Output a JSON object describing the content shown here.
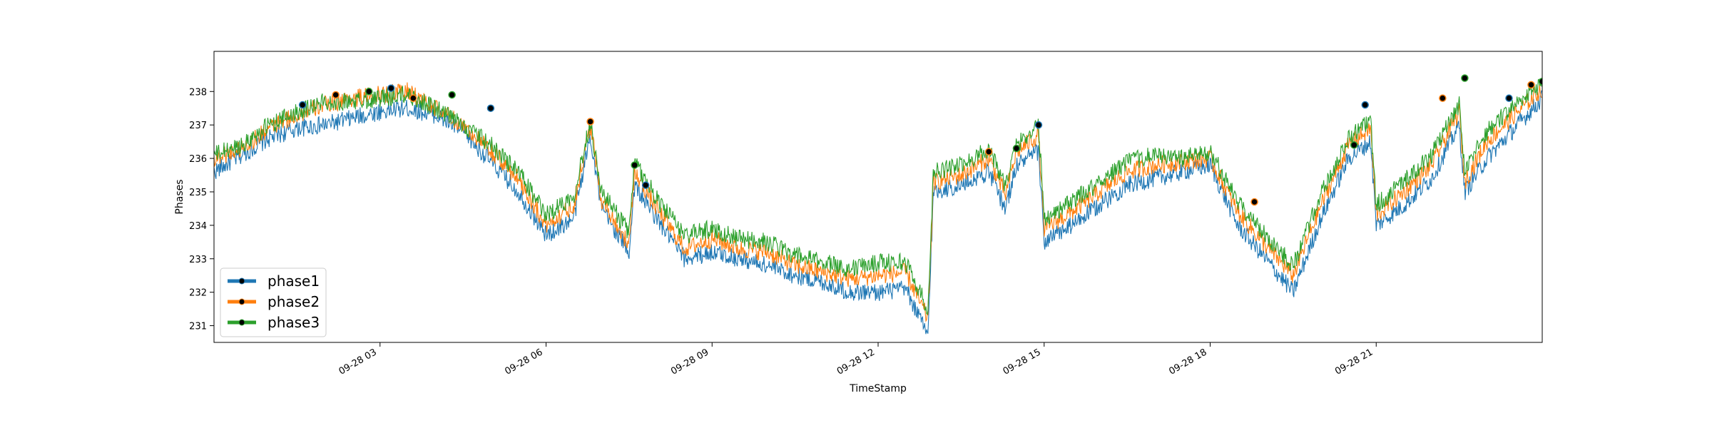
{
  "chart_data": {
    "type": "line",
    "title": "",
    "xlabel": "TimeStamp",
    "ylabel": "Phases",
    "xlim": [
      "09-28 00:00",
      "09-28 24:00"
    ],
    "ylim": [
      230.5,
      239.2
    ],
    "x_ticks": [
      "09-28 03",
      "09-28 06",
      "09-28 09",
      "09-28 12",
      "09-28 15",
      "09-28 18",
      "09-28 21"
    ],
    "y_ticks": [
      231,
      232,
      233,
      234,
      235,
      236,
      237,
      238
    ],
    "legend": {
      "position": "lower-left",
      "entries": [
        "phase1",
        "phase2",
        "phase3"
      ]
    },
    "grid": false,
    "markers_note": "black dots with colored edges mark peak points",
    "x_hours": [
      0,
      0.5,
      1,
      1.5,
      2,
      2.5,
      3,
      3.5,
      4,
      4.5,
      5,
      5.5,
      6,
      6.5,
      6.8,
      7.0,
      7.5,
      7.6,
      8,
      8.5,
      9,
      9.5,
      10,
      10.5,
      11,
      11.5,
      12,
      12.5,
      12.9,
      13.0,
      13.5,
      14,
      14.3,
      14.5,
      14.9,
      15.0,
      15.5,
      16,
      16.5,
      17,
      17.5,
      18,
      18.5,
      19,
      19.5,
      20,
      20.5,
      20.9,
      21.0,
      21.5,
      22,
      22.5,
      22.6,
      23,
      23.5,
      24
    ],
    "series": [
      {
        "name": "phase1",
        "color": "#1f77b4",
        "values": [
          235.6,
          236.1,
          236.6,
          236.9,
          237.0,
          237.2,
          237.4,
          237.5,
          237.3,
          236.8,
          235.9,
          235.0,
          233.7,
          234.2,
          236.7,
          234.5,
          233.2,
          235.2,
          234.2,
          233.0,
          233.2,
          233.0,
          232.8,
          232.5,
          232.3,
          232.0,
          232.0,
          232.1,
          230.7,
          235.0,
          235.2,
          235.6,
          234.5,
          235.8,
          236.2,
          233.5,
          234.0,
          234.6,
          235.2,
          235.4,
          235.6,
          235.8,
          234.0,
          233.0,
          232.0,
          234.2,
          236.0,
          236.5,
          234.0,
          234.6,
          235.4,
          237.0,
          235.0,
          236.0,
          236.9,
          237.8
        ]
      },
      {
        "name": "phase2",
        "color": "#ff7f0e",
        "values": [
          236.0,
          236.3,
          236.9,
          237.3,
          237.6,
          237.8,
          237.9,
          238.0,
          237.5,
          237.0,
          236.2,
          235.4,
          234.0,
          234.6,
          237.0,
          234.8,
          233.4,
          235.6,
          234.5,
          233.3,
          233.6,
          233.3,
          233.2,
          232.8,
          232.6,
          232.4,
          232.5,
          232.6,
          231.2,
          235.3,
          235.5,
          236.0,
          234.9,
          236.2,
          236.7,
          233.9,
          234.4,
          235.0,
          235.6,
          235.8,
          235.9,
          236.0,
          234.4,
          233.4,
          232.5,
          234.6,
          236.4,
          236.9,
          234.3,
          235.0,
          235.8,
          237.4,
          235.3,
          236.5,
          237.3,
          238.1
        ]
      },
      {
        "name": "phase3",
        "color": "#2ca02c",
        "values": [
          236.1,
          236.4,
          237.0,
          237.4,
          237.7,
          237.7,
          237.8,
          237.9,
          237.5,
          237.0,
          236.4,
          235.6,
          234.3,
          234.9,
          237.1,
          235.0,
          233.8,
          235.9,
          234.8,
          233.7,
          233.9,
          233.6,
          233.5,
          233.1,
          232.9,
          232.7,
          232.9,
          232.9,
          231.5,
          235.6,
          235.8,
          236.3,
          235.2,
          236.4,
          237.0,
          234.2,
          234.7,
          235.3,
          235.9,
          236.1,
          236.0,
          236.2,
          234.7,
          233.7,
          232.8,
          234.9,
          236.6,
          237.1,
          234.6,
          235.3,
          236.1,
          237.6,
          235.6,
          236.8,
          237.6,
          238.3
        ]
      }
    ],
    "peak_markers": [
      {
        "x": 1.6,
        "y": 237.6
      },
      {
        "x": 2.2,
        "y": 237.9
      },
      {
        "x": 2.8,
        "y": 238.0
      },
      {
        "x": 3.2,
        "y": 238.1
      },
      {
        "x": 3.6,
        "y": 237.8
      },
      {
        "x": 4.3,
        "y": 237.9
      },
      {
        "x": 5.0,
        "y": 237.5
      },
      {
        "x": 6.8,
        "y": 237.1
      },
      {
        "x": 7.6,
        "y": 235.8
      },
      {
        "x": 7.8,
        "y": 235.2
      },
      {
        "x": 14.0,
        "y": 236.2
      },
      {
        "x": 14.5,
        "y": 236.3
      },
      {
        "x": 14.9,
        "y": 237.0
      },
      {
        "x": 18.8,
        "y": 234.7
      },
      {
        "x": 20.6,
        "y": 236.4
      },
      {
        "x": 20.8,
        "y": 237.6
      },
      {
        "x": 22.2,
        "y": 237.8
      },
      {
        "x": 22.6,
        "y": 238.4
      },
      {
        "x": 23.4,
        "y": 237.8
      },
      {
        "x": 23.8,
        "y": 238.2
      },
      {
        "x": 24.0,
        "y": 238.3
      }
    ]
  }
}
